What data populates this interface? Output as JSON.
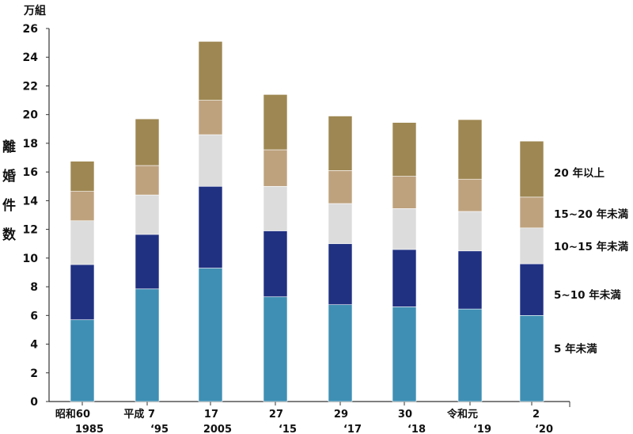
{
  "chart_data": {
    "type": "bar",
    "stacked": true,
    "unit_label": "万組",
    "ylabel": "離婚件数",
    "ylim": [
      0,
      26
    ],
    "yticks": [
      0,
      2,
      4,
      6,
      8,
      10,
      12,
      14,
      16,
      18,
      20,
      22,
      24,
      26
    ],
    "grid": false,
    "legend_placement": "right (inline labels)",
    "categories": [
      {
        "era": "昭和60",
        "year": "1985"
      },
      {
        "era": "平成 7",
        "year": "‘95"
      },
      {
        "era": "17",
        "year": "2005"
      },
      {
        "era": "27",
        "year": "‘15"
      },
      {
        "era": "29",
        "year": "‘17"
      },
      {
        "era": "30",
        "year": "‘18"
      },
      {
        "era": "令和元",
        "year": "‘19"
      },
      {
        "era": "2",
        "year": "‘20"
      }
    ],
    "series": [
      {
        "name": "5 年未満",
        "color": "#3f8fb4",
        "values": [
          5.7,
          7.85,
          9.3,
          7.3,
          6.75,
          6.6,
          6.45,
          6.0
        ]
      },
      {
        "name": "5~10 年未満",
        "color": "#203182",
        "values": [
          3.85,
          3.8,
          5.7,
          4.6,
          4.25,
          4.0,
          4.05,
          3.6
        ]
      },
      {
        "name": "10~15 年未満",
        "color": "#dcdcdc",
        "values": [
          3.05,
          2.75,
          3.6,
          3.1,
          2.8,
          2.85,
          2.75,
          2.5
        ]
      },
      {
        "name": "15~20 年未満",
        "color": "#bea27e",
        "values": [
          2.05,
          2.05,
          2.4,
          2.55,
          2.3,
          2.25,
          2.25,
          2.15
        ]
      },
      {
        "name": "20 年以上",
        "color": "#9e8752",
        "values": [
          2.1,
          3.25,
          4.1,
          3.85,
          3.8,
          3.75,
          4.15,
          3.9
        ]
      }
    ]
  }
}
